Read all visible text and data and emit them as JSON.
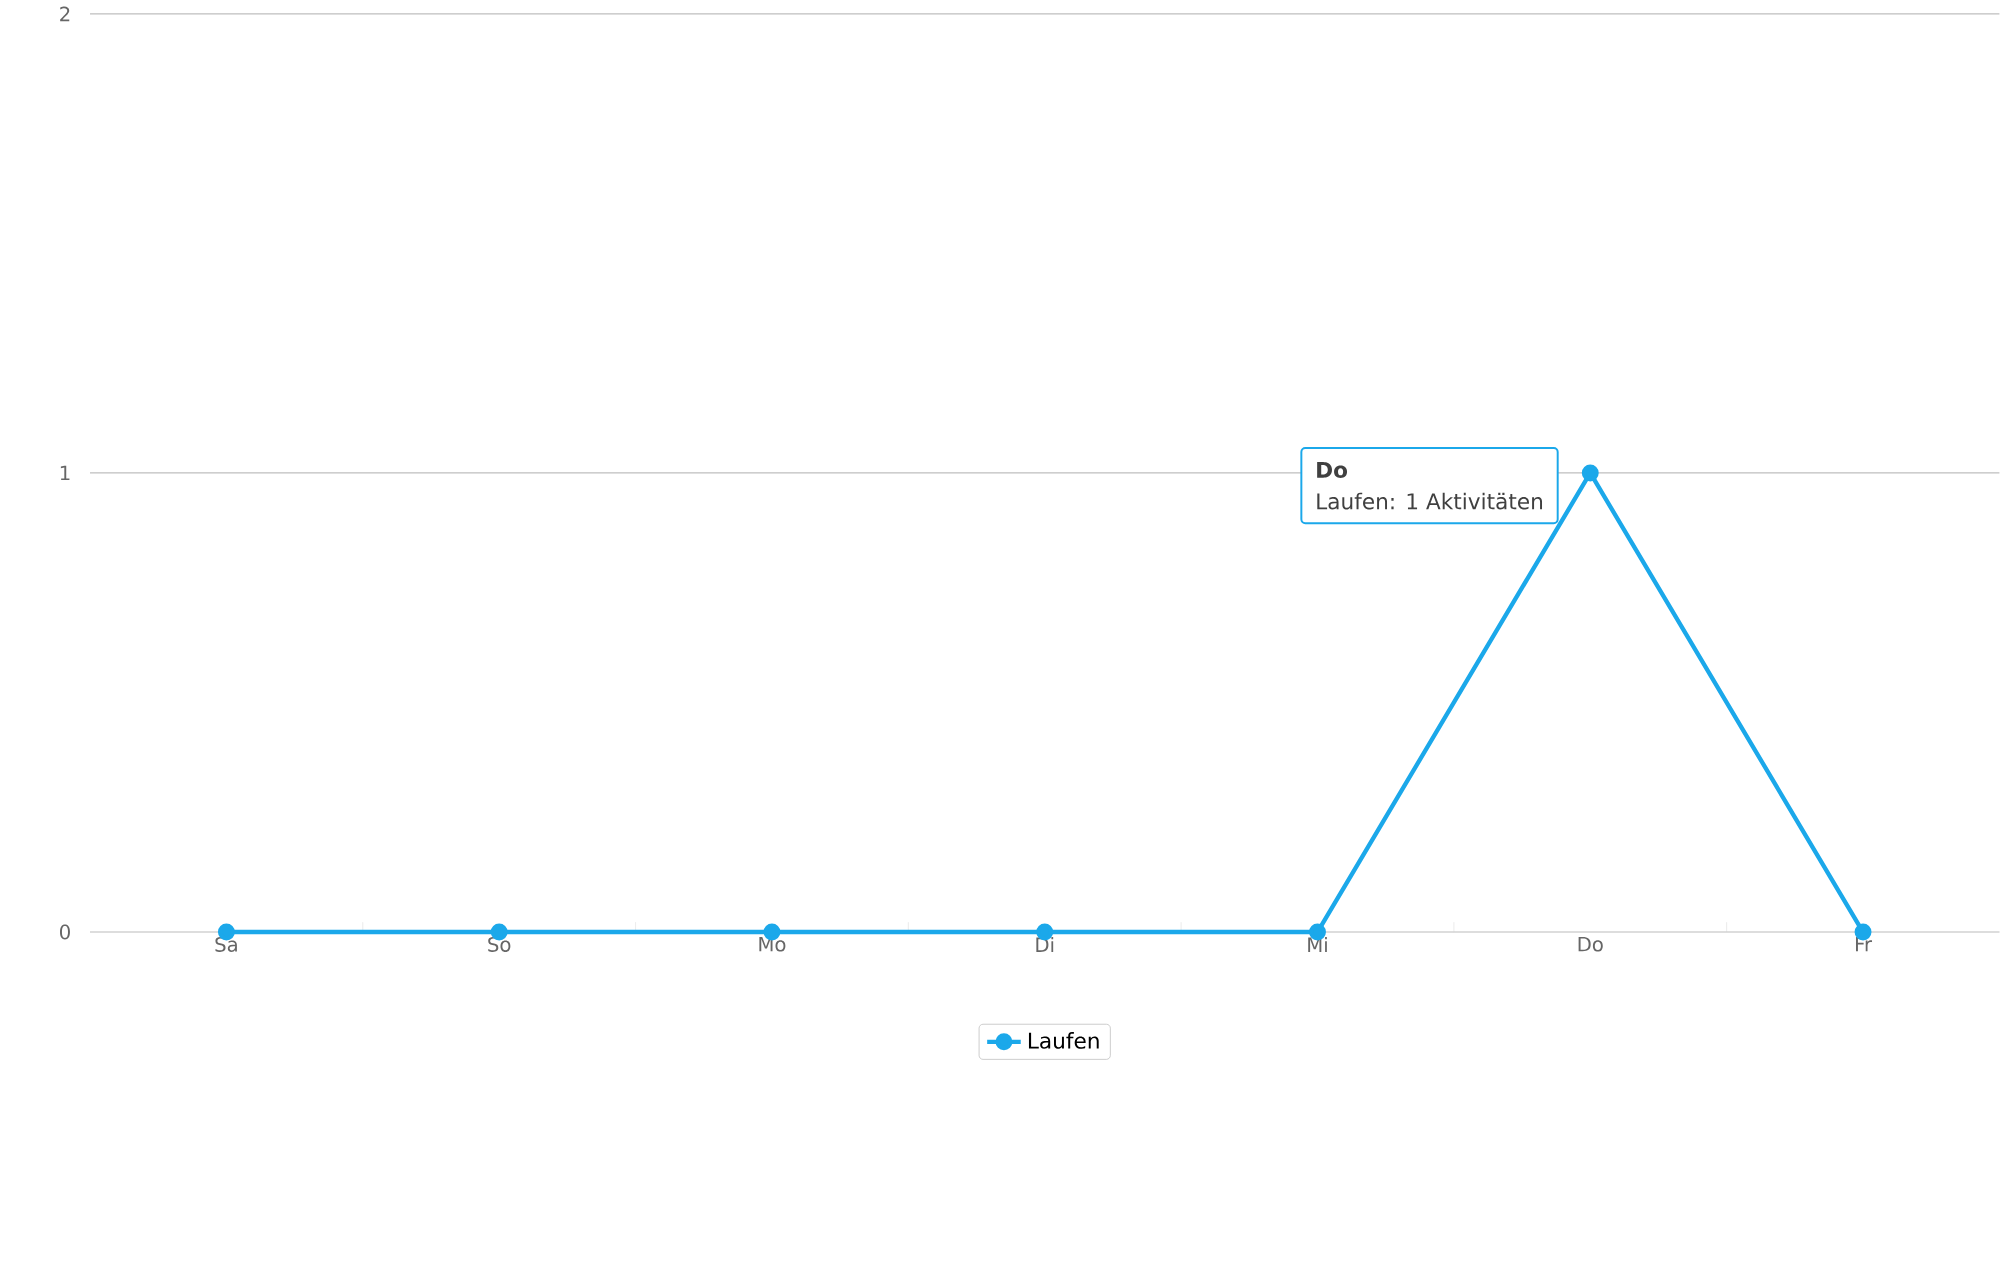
{
  "chart_data": {
    "type": "line",
    "categories": [
      "Sa",
      "So",
      "Mo",
      "Di",
      "Mi",
      "Do",
      "Fr"
    ],
    "series": [
      {
        "name": "Laufen",
        "color": "#1ba8ea",
        "values": [
          0,
          0,
          0,
          0,
          0,
          1,
          0
        ]
      }
    ],
    "ylim": [
      0,
      2
    ],
    "yticks": [
      0,
      1,
      2
    ],
    "grid": "y",
    "legend": "bottom",
    "marker": "circle",
    "line_style": "solid",
    "annotations": [
      "Do",
      "Laufen: 1 Aktivitäten"
    ]
  }
}
